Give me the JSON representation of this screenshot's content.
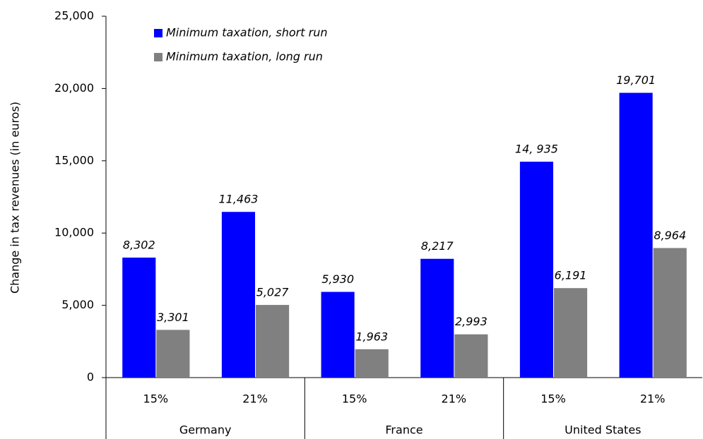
{
  "chart_data": {
    "type": "bar",
    "y_axis_label": "Change in tax revenues (in euros)",
    "categories": [
      "15%",
      "21%",
      "15%",
      "21%",
      "15%",
      "21%"
    ],
    "groups": [
      "Germany",
      "France",
      "United States"
    ],
    "series": [
      {
        "name": "Minimum taxation, short run",
        "color": "#0000ff",
        "values": [
          8302,
          11463,
          5930,
          8217,
          14935,
          19701
        ],
        "value_labels": [
          "8,302",
          "11,463",
          "5,930",
          "8,217",
          "14, 935",
          "19,701"
        ]
      },
      {
        "name": "Minimum taxation, long run",
        "color": "#808080",
        "values": [
          3301,
          5027,
          1963,
          2993,
          6191,
          8964
        ],
        "value_labels": [
          "3,301",
          "5,027",
          "1,963",
          "2,993",
          "6,191",
          "8,964"
        ]
      }
    ],
    "ylim": [
      0,
      25000
    ],
    "yticks": [
      0,
      {
        "value": 5000,
        "label": "5,000"
      },
      {
        "value": 10000,
        "label": "10,000"
      },
      {
        "value": 15000,
        "label": "15,000"
      },
      {
        "value": 20000,
        "label": "20,000"
      },
      {
        "value": 25000,
        "label": "25,000"
      }
    ],
    "grid": false,
    "legend": "top-left"
  }
}
